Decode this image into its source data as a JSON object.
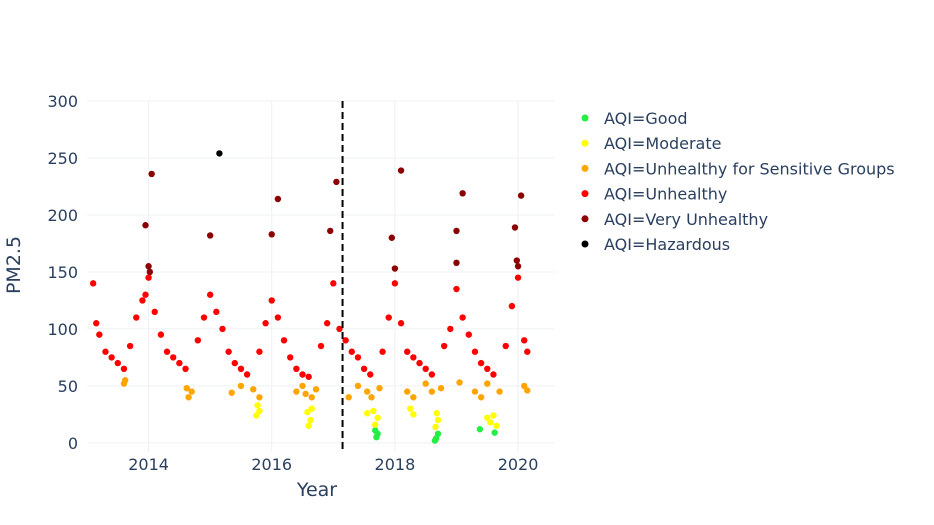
{
  "chart_data": {
    "type": "scatter",
    "xlabel": "Year",
    "ylabel": "PM2.5",
    "xlim": [
      2013.0,
      2020.6
    ],
    "ylim": [
      -8,
      300
    ],
    "xticks": [
      2014,
      2016,
      2018,
      2020
    ],
    "yticks": [
      0,
      50,
      100,
      150,
      200,
      250,
      300
    ],
    "grid": true,
    "legend_position": "top-right",
    "vline": {
      "x": 2017.15,
      "style": "dashed",
      "color": "#000000"
    },
    "series": [
      {
        "name": "AQI=Good",
        "color": "#22ee44",
        "points": [
          [
            2017.7,
            5
          ],
          [
            2017.72,
            8
          ],
          [
            2017.68,
            11
          ],
          [
            2018.65,
            2
          ],
          [
            2018.67,
            4
          ],
          [
            2018.7,
            8
          ],
          [
            2019.38,
            12
          ],
          [
            2019.62,
            9
          ]
        ]
      },
      {
        "name": "AQI=Moderate",
        "color": "#ffff00",
        "points": [
          [
            2015.75,
            24
          ],
          [
            2015.8,
            28
          ],
          [
            2015.77,
            33
          ],
          [
            2016.6,
            15
          ],
          [
            2016.63,
            20
          ],
          [
            2016.58,
            27
          ],
          [
            2016.65,
            30
          ],
          [
            2017.68,
            16
          ],
          [
            2017.72,
            22
          ],
          [
            2017.65,
            28
          ],
          [
            2017.55,
            26
          ],
          [
            2018.25,
            30
          ],
          [
            2018.3,
            25
          ],
          [
            2018.66,
            14
          ],
          [
            2018.7,
            20
          ],
          [
            2018.68,
            26
          ],
          [
            2019.5,
            22
          ],
          [
            2019.55,
            18
          ],
          [
            2019.65,
            15
          ],
          [
            2019.6,
            24
          ]
        ]
      },
      {
        "name": "AQI=Unhealthy for Sensitive Groups",
        "color": "#ffa500",
        "points": [
          [
            2013.6,
            52
          ],
          [
            2013.62,
            55
          ],
          [
            2014.65,
            40
          ],
          [
            2014.7,
            45
          ],
          [
            2014.62,
            48
          ],
          [
            2015.35,
            44
          ],
          [
            2015.5,
            50
          ],
          [
            2015.7,
            47
          ],
          [
            2015.8,
            40
          ],
          [
            2016.4,
            45
          ],
          [
            2016.5,
            50
          ],
          [
            2016.55,
            43
          ],
          [
            2016.65,
            40
          ],
          [
            2016.72,
            47
          ],
          [
            2017.25,
            40
          ],
          [
            2017.4,
            50
          ],
          [
            2017.55,
            45
          ],
          [
            2017.62,
            40
          ],
          [
            2017.75,
            48
          ],
          [
            2018.2,
            45
          ],
          [
            2018.3,
            40
          ],
          [
            2018.5,
            52
          ],
          [
            2018.6,
            45
          ],
          [
            2018.75,
            48
          ],
          [
            2019.05,
            53
          ],
          [
            2019.3,
            45
          ],
          [
            2019.4,
            40
          ],
          [
            2019.5,
            52
          ],
          [
            2019.7,
            45
          ],
          [
            2020.1,
            50
          ],
          [
            2020.15,
            46
          ]
        ]
      },
      {
        "name": "AQI=Unhealthy",
        "color": "#ff0000",
        "points": [
          [
            2013.1,
            140
          ],
          [
            2013.15,
            105
          ],
          [
            2013.2,
            95
          ],
          [
            2013.3,
            80
          ],
          [
            2013.4,
            75
          ],
          [
            2013.5,
            70
          ],
          [
            2013.6,
            65
          ],
          [
            2013.7,
            85
          ],
          [
            2013.8,
            110
          ],
          [
            2013.9,
            125
          ],
          [
            2013.95,
            130
          ],
          [
            2014.0,
            145
          ],
          [
            2014.1,
            115
          ],
          [
            2014.2,
            95
          ],
          [
            2014.3,
            80
          ],
          [
            2014.4,
            75
          ],
          [
            2014.5,
            70
          ],
          [
            2014.6,
            65
          ],
          [
            2014.8,
            90
          ],
          [
            2014.9,
            110
          ],
          [
            2015.0,
            130
          ],
          [
            2015.1,
            115
          ],
          [
            2015.2,
            100
          ],
          [
            2015.3,
            80
          ],
          [
            2015.4,
            70
          ],
          [
            2015.5,
            65
          ],
          [
            2015.6,
            60
          ],
          [
            2015.8,
            80
          ],
          [
            2015.9,
            105
          ],
          [
            2016.0,
            125
          ],
          [
            2016.1,
            110
          ],
          [
            2016.2,
            90
          ],
          [
            2016.3,
            75
          ],
          [
            2016.4,
            65
          ],
          [
            2016.5,
            60
          ],
          [
            2016.6,
            58
          ],
          [
            2016.8,
            85
          ],
          [
            2016.9,
            105
          ],
          [
            2017.0,
            140
          ],
          [
            2017.1,
            100
          ],
          [
            2017.2,
            90
          ],
          [
            2017.3,
            80
          ],
          [
            2017.4,
            75
          ],
          [
            2017.5,
            65
          ],
          [
            2017.6,
            60
          ],
          [
            2017.8,
            80
          ],
          [
            2017.9,
            110
          ],
          [
            2018.0,
            140
          ],
          [
            2018.1,
            105
          ],
          [
            2018.2,
            80
          ],
          [
            2018.3,
            75
          ],
          [
            2018.4,
            70
          ],
          [
            2018.5,
            65
          ],
          [
            2018.6,
            60
          ],
          [
            2018.8,
            85
          ],
          [
            2018.9,
            100
          ],
          [
            2019.0,
            135
          ],
          [
            2019.1,
            110
          ],
          [
            2019.2,
            95
          ],
          [
            2019.3,
            80
          ],
          [
            2019.4,
            70
          ],
          [
            2019.5,
            65
          ],
          [
            2019.6,
            60
          ],
          [
            2019.8,
            85
          ],
          [
            2019.9,
            120
          ],
          [
            2020.0,
            145
          ],
          [
            2020.1,
            90
          ],
          [
            2020.15,
            80
          ]
        ]
      },
      {
        "name": "AQI=Very Unhealthy",
        "color": "#8b0000",
        "points": [
          [
            2013.95,
            191
          ],
          [
            2014.05,
            236
          ],
          [
            2014.0,
            155
          ],
          [
            2014.02,
            150
          ],
          [
            2015.0,
            182
          ],
          [
            2016.0,
            183
          ],
          [
            2016.1,
            214
          ],
          [
            2016.95,
            186
          ],
          [
            2017.05,
            229
          ],
          [
            2017.95,
            180
          ],
          [
            2018.1,
            239
          ],
          [
            2018.0,
            153
          ],
          [
            2019.0,
            186
          ],
          [
            2019.1,
            219
          ],
          [
            2019.0,
            158
          ],
          [
            2019.95,
            189
          ],
          [
            2020.05,
            217
          ],
          [
            2019.98,
            160
          ],
          [
            2020.0,
            155
          ]
        ]
      },
      {
        "name": "AQI=Hazardous",
        "color": "#000000",
        "points": [
          [
            2015.15,
            254
          ]
        ]
      }
    ]
  }
}
